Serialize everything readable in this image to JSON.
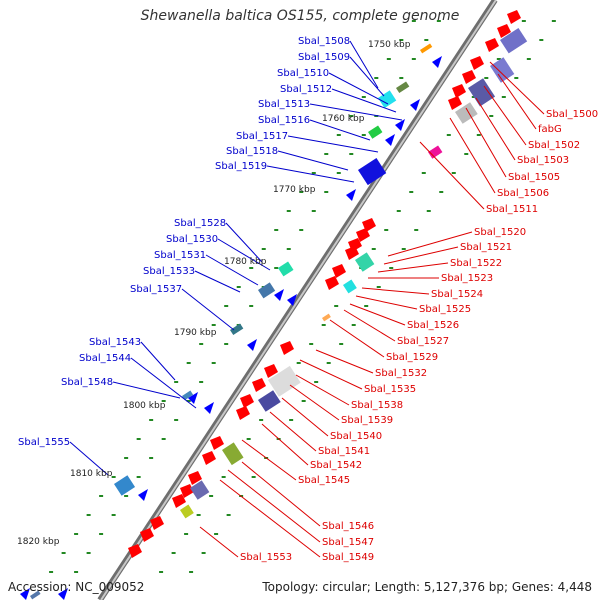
{
  "title": "Shewanella baltica OS155, complete genome",
  "accession": "Accession: NC_009052",
  "summary": "Topology: circular; Length: 5,127,376 bp; Genes: 4,448",
  "colors": {
    "backbone": "#8a8a8a",
    "forward_gene": "#ff0000",
    "reverse_gene": "#0000ff",
    "left_label": "#0000cc",
    "right_label": "#dd0000",
    "tick": "#228822"
  },
  "ticks": [
    "1750 kbp",
    "1760 kbp",
    "1770 kbp",
    "1780 kbp",
    "1790 kbp",
    "1800 kbp",
    "1810 kbp",
    "1820 kbp"
  ],
  "left_labels": [
    "Sbal_1508",
    "Sbal_1509",
    "Sbal_1510",
    "Sbal_1512",
    "Sbal_1513",
    "Sbal_1516",
    "Sbal_1517",
    "Sbal_1518",
    "Sbal_1519",
    "Sbal_1528",
    "Sbal_1530",
    "Sbal_1531",
    "Sbal_1533",
    "Sbal_1537",
    "Sbal_1543",
    "Sbal_1544",
    "Sbal_1548",
    "Sbal_1555"
  ],
  "right_labels": [
    "Sbal_1500",
    "fabG",
    "Sbal_1502",
    "Sbal_1503",
    "Sbal_1505",
    "Sbal_1506",
    "Sbal_1511",
    "Sbal_1520",
    "Sbal_1521",
    "Sbal_1522",
    "Sbal_1523",
    "Sbal_1524",
    "Sbal_1525",
    "Sbal_1526",
    "Sbal_1527",
    "Sbal_1529",
    "Sbal_1532",
    "Sbal_1535",
    "Sbal_1538",
    "Sbal_1539",
    "Sbal_1540",
    "Sbal_1541",
    "Sbal_1542",
    "Sbal_1545",
    "Sbal_1546",
    "Sbal_1547",
    "Sbal_1549",
    "Sbal_1553"
  ]
}
